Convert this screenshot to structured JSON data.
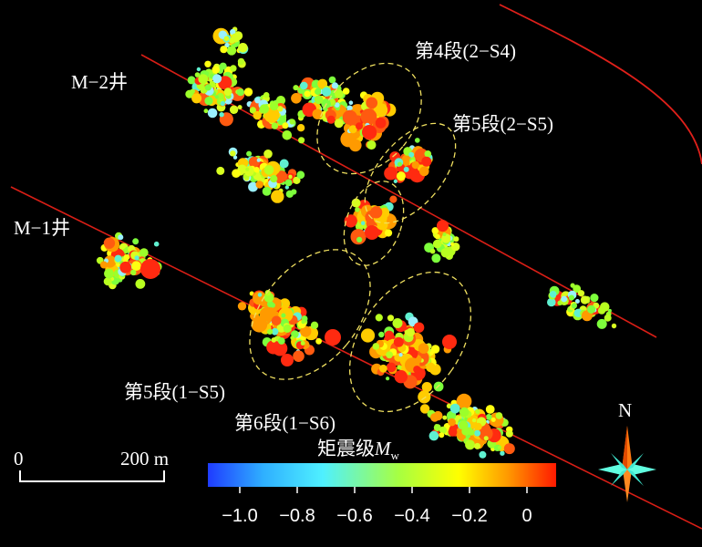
{
  "map": {
    "well_labels": {
      "m1": "M−1井",
      "m2": "M−2井"
    },
    "stage_labels": {
      "s4_2": "第4段(2−S4)",
      "s5_2": "第5段(2−S5)",
      "s5_1": "第5段(1−S5)",
      "s6_1": "第6段(1−S6)"
    },
    "scale_bar": {
      "start": "0",
      "end": "200 m"
    },
    "north_label": "N",
    "colorbar": {
      "title": "矩震级",
      "symbol": "M",
      "subscript": "w",
      "ticks": [
        "−1.0",
        "−0.8",
        "−0.6",
        "−0.4",
        "−0.2",
        "0"
      ],
      "colors": [
        "#1f3cff",
        "#2fb0ff",
        "#4ff0ff",
        "#a8ff40",
        "#ffff00",
        "#ff9a00",
        "#ff1a00"
      ]
    }
  }
}
